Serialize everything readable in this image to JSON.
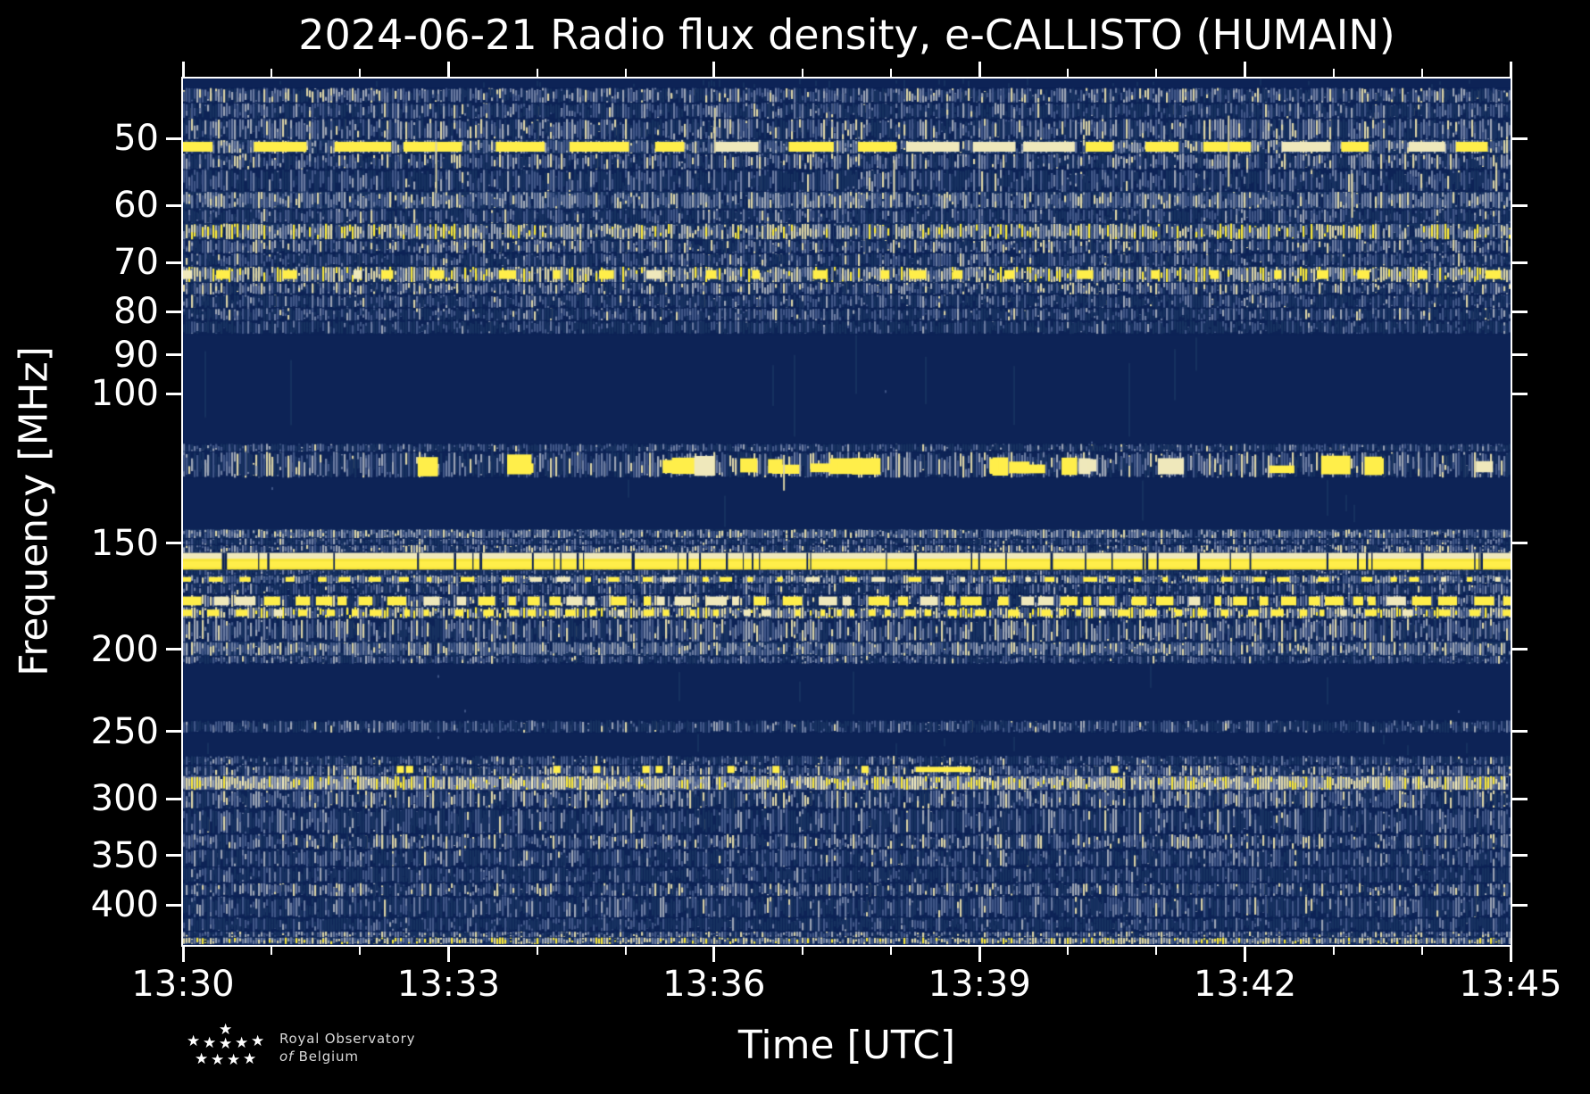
{
  "title": "2024-06-21 Radio flux density, e-CALLISTO (HUMAIN)",
  "chart_data": {
    "type": "heatmap",
    "title": "2024-06-21 Radio flux density, e-CALLISTO (HUMAIN)",
    "xlabel": "Time [UTC]",
    "ylabel": "Frequency [MHz]",
    "x_ticks_major": [
      "13:30",
      "13:33",
      "13:36",
      "13:39",
      "13:42",
      "13:45"
    ],
    "x_minutes_total": 15,
    "x_minor_step_minutes": 1,
    "y_scale": "log",
    "y_inverted": true,
    "y_ticks": [
      50,
      60,
      70,
      80,
      90,
      100,
      150,
      200,
      250,
      300,
      350,
      400
    ],
    "ylim": [
      42.5,
      446
    ],
    "grid": false,
    "colors": {
      "background": "#000000",
      "axis": "#ffffff",
      "navyD": "#0d2356",
      "navy": "#16315f",
      "slate": "#3f5586",
      "slateL": "#68799f",
      "gray": "#9aa3b4",
      "cream": "#d9d2a6",
      "creamB": "#efe8bb",
      "yellow": "#f7e63b",
      "yellowB": "#ffee4a"
    },
    "mixes": {
      "med": {
        "base": "navyD",
        "picks": [
          [
            "navy",
            32
          ],
          [
            "slate",
            24
          ],
          [
            "slateL",
            20
          ],
          [
            "gray",
            14
          ],
          [
            "cream",
            10
          ]
        ]
      },
      "dim": {
        "base": "navyD",
        "picks": [
          [
            "navy",
            48
          ],
          [
            "slate",
            30
          ],
          [
            "slateL",
            14
          ],
          [
            "gray",
            6
          ],
          [
            "cream",
            2
          ]
        ]
      },
      "vdim": {
        "base": "navyD",
        "picks": [
          [
            "navy",
            62
          ],
          [
            "slate",
            28
          ],
          [
            "slateL",
            8
          ],
          [
            "gray",
            2
          ]
        ]
      },
      "grayband": {
        "base": "navy",
        "picks": [
          [
            "slate",
            26
          ],
          [
            "slateL",
            28
          ],
          [
            "gray",
            24
          ],
          [
            "cream",
            12
          ],
          [
            "navyD",
            10
          ]
        ]
      },
      "bright": {
        "base": "navy",
        "picks": [
          [
            "slateL",
            18
          ],
          [
            "gray",
            22
          ],
          [
            "cream",
            30
          ],
          [
            "yellow",
            12
          ],
          [
            "slate",
            10
          ],
          [
            "navyD",
            8
          ]
        ]
      },
      "creamy": {
        "base": "slate",
        "picks": [
          [
            "gray",
            22
          ],
          [
            "cream",
            38
          ],
          [
            "yellow",
            16
          ],
          [
            "creamB",
            12
          ],
          [
            "slateL",
            8
          ],
          [
            "navyD",
            4
          ]
        ]
      }
    },
    "bands": [
      {
        "f0": 42.5,
        "f1": 43.6,
        "style": "quiet",
        "dens": 0.05
      },
      {
        "f0": 43.6,
        "f1": 45.4,
        "style": "sp",
        "mix": "med"
      },
      {
        "f0": 45.4,
        "f1": 47.4,
        "style": "sp",
        "mix": "dim"
      },
      {
        "f0": 47.4,
        "f1": 50.2,
        "style": "sp",
        "mix": "med"
      },
      {
        "f0": 50.2,
        "f1": 52.1,
        "style": "dash",
        "mix": "grayband",
        "dash": [
          26,
          70
        ],
        "gap": [
          8,
          50
        ]
      },
      {
        "f0": 52.1,
        "f1": 54.4,
        "style": "sp",
        "mix": "med"
      },
      {
        "f0": 54.4,
        "f1": 57.8,
        "style": "sp",
        "mix": "dim"
      },
      {
        "f0": 57.8,
        "f1": 60.5,
        "style": "sp",
        "mix": "grayband"
      },
      {
        "f0": 60.5,
        "f1": 63.0,
        "style": "sp",
        "mix": "dim"
      },
      {
        "f0": 63.0,
        "f1": 65.8,
        "style": "sp",
        "mix": "bright"
      },
      {
        "f0": 65.8,
        "f1": 68.3,
        "style": "sp",
        "mix": "med"
      },
      {
        "f0": 68.3,
        "f1": 70.8,
        "style": "sp",
        "mix": "dim"
      },
      {
        "f0": 70.8,
        "f1": 73.9,
        "style": "spdash",
        "mix": "bright",
        "dash": [
          6,
          20
        ],
        "gap": [
          18,
          70
        ]
      },
      {
        "f0": 73.9,
        "f1": 76.4,
        "style": "sp",
        "mix": "med"
      },
      {
        "f0": 76.4,
        "f1": 79.2,
        "style": "sp",
        "mix": "dim"
      },
      {
        "f0": 79.2,
        "f1": 82.0,
        "style": "sp",
        "mix": "dim"
      },
      {
        "f0": 82.0,
        "f1": 85.0,
        "style": "sp",
        "mix": "vdim"
      },
      {
        "f0": 85.0,
        "f1": 114.5,
        "style": "quiet",
        "dens": 0.015
      },
      {
        "f0": 114.5,
        "f1": 117.0,
        "style": "sp",
        "mix": "dim"
      },
      {
        "f0": 117.0,
        "f1": 125.6,
        "style": "sp",
        "mix": "med",
        "blobs": 26
      },
      {
        "f0": 125.6,
        "f1": 144.4,
        "style": "quiet",
        "dens": 0.01
      },
      {
        "f0": 144.4,
        "f1": 148.0,
        "style": "sp",
        "mix": "grayband"
      },
      {
        "f0": 148.0,
        "f1": 150.7,
        "style": "sp",
        "mix": "dim"
      },
      {
        "f0": 150.7,
        "f1": 153.9,
        "style": "sp",
        "mix": "med"
      },
      {
        "f0": 153.9,
        "f1": 161.2,
        "style": "line"
      },
      {
        "f0": 161.2,
        "f1": 163.5,
        "style": "sp",
        "mix": "vdim"
      },
      {
        "f0": 163.5,
        "f1": 167.3,
        "style": "spdash",
        "mix": "grayband",
        "dash": [
          5,
          16
        ],
        "gap": [
          10,
          40
        ]
      },
      {
        "f0": 167.3,
        "f1": 172.5,
        "style": "sp",
        "mix": "dim"
      },
      {
        "f0": 172.5,
        "f1": 178.3,
        "style": "dash",
        "mix": "med",
        "dash": [
          7,
          24
        ],
        "gap": [
          4,
          20
        ]
      },
      {
        "f0": 178.3,
        "f1": 184.0,
        "style": "spdash",
        "mix": "bright",
        "dash": [
          5,
          14
        ],
        "gap": [
          8,
          30
        ]
      },
      {
        "f0": 184.0,
        "f1": 196.0,
        "style": "sp",
        "mix": "med"
      },
      {
        "f0": 196.0,
        "f1": 203.5,
        "style": "sp",
        "mix": "grayband"
      },
      {
        "f0": 203.5,
        "f1": 208.0,
        "style": "sp",
        "mix": "dim"
      },
      {
        "f0": 208.0,
        "f1": 242.5,
        "style": "quiet",
        "dens": 0.02
      },
      {
        "f0": 242.5,
        "f1": 250.8,
        "style": "sp",
        "mix": "dim"
      },
      {
        "f0": 250.8,
        "f1": 267.0,
        "style": "quiet",
        "dens": 0.015
      },
      {
        "f0": 267.0,
        "f1": 274.0,
        "style": "sp",
        "mix": "dim"
      },
      {
        "f0": 274.0,
        "f1": 282.0,
        "style": "spdots",
        "mix": "med"
      },
      {
        "f0": 282.0,
        "f1": 293.0,
        "style": "sp",
        "mix": "creamy"
      },
      {
        "f0": 293.0,
        "f1": 308.0,
        "style": "sp",
        "mix": "med"
      },
      {
        "f0": 308.0,
        "f1": 330.0,
        "style": "sp",
        "mix": "dim"
      },
      {
        "f0": 330.0,
        "f1": 344.0,
        "style": "sp",
        "mix": "med"
      },
      {
        "f0": 344.0,
        "f1": 361.0,
        "style": "sp",
        "mix": "dim"
      },
      {
        "f0": 361.0,
        "f1": 377.0,
        "style": "sp",
        "mix": "vdim"
      },
      {
        "f0": 377.0,
        "f1": 391.0,
        "style": "sp",
        "mix": "med"
      },
      {
        "f0": 391.0,
        "f1": 414.0,
        "style": "sp",
        "mix": "dim"
      },
      {
        "f0": 414.0,
        "f1": 430.0,
        "style": "sp",
        "mix": "vdim"
      },
      {
        "f0": 430.0,
        "f1": 437.0,
        "style": "sp",
        "mix": "med"
      },
      {
        "f0": 437.0,
        "f1": 445.0,
        "style": "sp",
        "mix": "bright"
      }
    ],
    "dots": {
      "freq": 277,
      "xs": [
        0.161,
        0.168,
        0.279,
        0.309,
        0.346,
        0.356,
        0.41,
        0.444,
        0.511,
        0.699
      ],
      "wide": {
        "x": 0.552,
        "w": 0.042
      }
    },
    "spikes": [
      {
        "x": 0.19,
        "f0": 50.5,
        "f1": 58
      },
      {
        "x": 0.4,
        "f0": 46.0,
        "f1": 52
      },
      {
        "x": 0.535,
        "f0": 53.0,
        "f1": 59
      },
      {
        "x": 0.787,
        "f0": 47.0,
        "f1": 57
      },
      {
        "x": 0.88,
        "f0": 55.0,
        "f1": 62
      },
      {
        "x": 0.452,
        "f0": 118.0,
        "f1": 130
      }
    ]
  },
  "logo": {
    "star_rows": [
      1,
      5,
      4
    ],
    "line1": "Royal Observatory",
    "line2_italic": "of",
    "line2": "Belgium"
  }
}
